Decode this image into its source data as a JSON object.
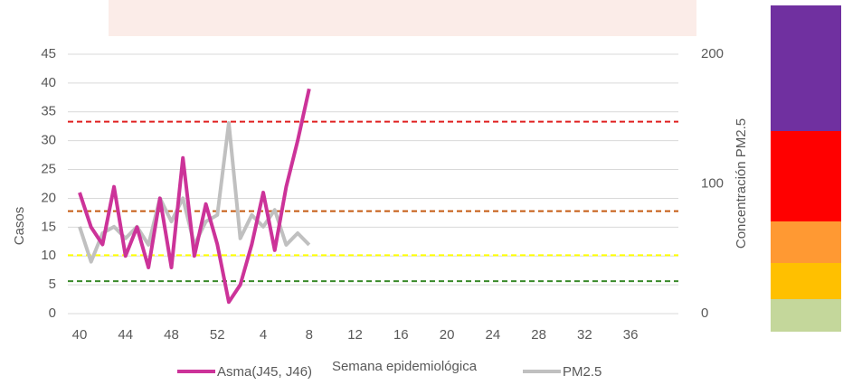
{
  "chart_data": {
    "type": "line",
    "xlabel": "Semana epidemiológica",
    "ylabel": "Casos",
    "y2label": "Concentración PM2.5",
    "categories": [
      40,
      null,
      null,
      null,
      44,
      null,
      null,
      null,
      48,
      null,
      null,
      null,
      52,
      null,
      null,
      null,
      4,
      null,
      null,
      null,
      8,
      null,
      null,
      null,
      12,
      null,
      null,
      null,
      16,
      null,
      null,
      null,
      20,
      null,
      null,
      null,
      24,
      null,
      null,
      null,
      28,
      null,
      null,
      null,
      32,
      null,
      null,
      null,
      36,
      null,
      null,
      null
    ],
    "series": [
      {
        "name": "Asma(J45, J46)",
        "color": "#cc3399",
        "values": [
          21,
          15,
          12,
          22,
          10,
          15,
          8,
          20,
          8,
          27,
          10,
          19,
          12,
          2,
          5,
          12,
          21,
          11,
          22,
          30,
          39,
          null,
          null,
          null,
          null,
          null,
          null,
          null,
          null,
          null,
          null,
          null,
          null,
          null,
          null,
          null,
          null,
          null,
          null,
          null,
          null,
          null,
          null,
          null,
          null,
          null,
          null,
          null,
          null,
          null,
          null,
          null
        ]
      },
      {
        "name": "PM2.5",
        "color": "#c0c0c0",
        "axis": "y2",
        "values": [
          67,
          40,
          62,
          67,
          58,
          67,
          53,
          89,
          71,
          89,
          53,
          71,
          76,
          147,
          58,
          76,
          67,
          80,
          53,
          62,
          53,
          null,
          null,
          null,
          null,
          null,
          null,
          null,
          null,
          null,
          null,
          null,
          null,
          null,
          null,
          null,
          null,
          null,
          null,
          null,
          null,
          null,
          null,
          null,
          null,
          null,
          null,
          null,
          null,
          null,
          null,
          null
        ]
      }
    ],
    "thresholds": [
      {
        "value": 148,
        "color": "#e02020"
      },
      {
        "value": 79,
        "color": "#c55a11"
      },
      {
        "value": 45,
        "color": "#ffff00"
      },
      {
        "value": 25,
        "color": "#3a8a2a"
      }
    ],
    "ylim": [
      0,
      45
    ],
    "yticks": [
      0,
      5,
      10,
      15,
      20,
      25,
      30,
      35,
      40,
      45
    ],
    "y2lim": [
      0,
      200
    ],
    "y2ticks": [
      0,
      100,
      200
    ],
    "grid": true,
    "legend": "bottom"
  }
}
